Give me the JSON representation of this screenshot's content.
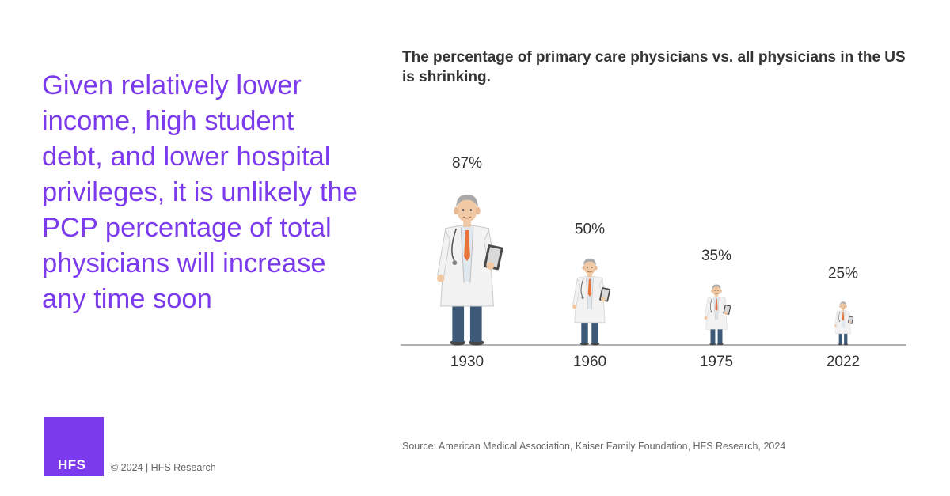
{
  "headline": "Given relatively lower income, high student debt, and lower hospital privileges, it is unlikely the PCP percentage of total physicians will increase any time soon",
  "source": "Source: American Medical Association, Kaiser Family Foundation, HFS Research, 2024",
  "footer": {
    "logo_text": "HFS",
    "copyright": "© 2024 | HFS Research"
  },
  "colors": {
    "accent": "#7c3aed",
    "coat": "#f2f2f2",
    "pants": "#3c5a78",
    "tie": "#e8743b",
    "hair": "#a9a9a9"
  },
  "chart_data": {
    "type": "bar",
    "title": "The percentage of primary care physicians vs. all physicians in the US is shrinking.",
    "categories": [
      "1930",
      "1960",
      "1975",
      "2022"
    ],
    "values": [
      87,
      50,
      35,
      25
    ],
    "value_labels": [
      "87%",
      "50%",
      "35%",
      "25%"
    ],
    "mark": "doctor-figure-icon",
    "ylim": [
      0,
      100
    ],
    "grid": false,
    "legend": "none"
  }
}
